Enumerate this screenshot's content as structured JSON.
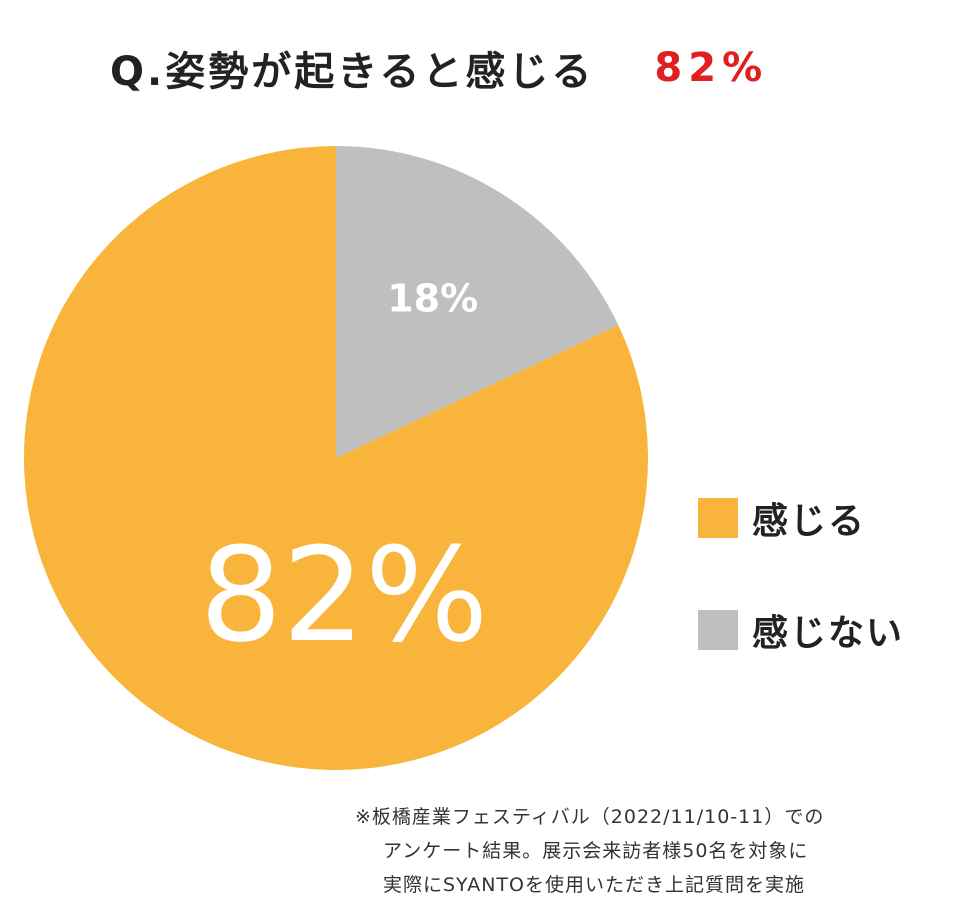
{
  "title": {
    "text": "Q.姿勢が起きると感じる",
    "highlight": "82%",
    "highlight_color": "#e02020"
  },
  "chart_data": {
    "type": "pie",
    "start_angle_deg": 0,
    "direction": "clockwise",
    "slices": [
      {
        "label": "感じない",
        "value": 18,
        "display": "18%",
        "color": "#c0bfbf"
      },
      {
        "label": "感じる",
        "value": 82,
        "display": "82%",
        "color": "#f9b43c"
      }
    ],
    "legend": {
      "placement": "right",
      "entries": [
        {
          "label": "感じる",
          "color": "#f9b43c"
        },
        {
          "label": "感じない",
          "color": "#c0bfbf"
        }
      ]
    }
  },
  "footnote": {
    "lines": [
      "※板橋産業フェスティバル（2022/11/10-11）での",
      "アンケート結果。展示会来訪者様50名を対象に",
      "実際にSYANTOを使用いただき上記質問を実施"
    ]
  }
}
